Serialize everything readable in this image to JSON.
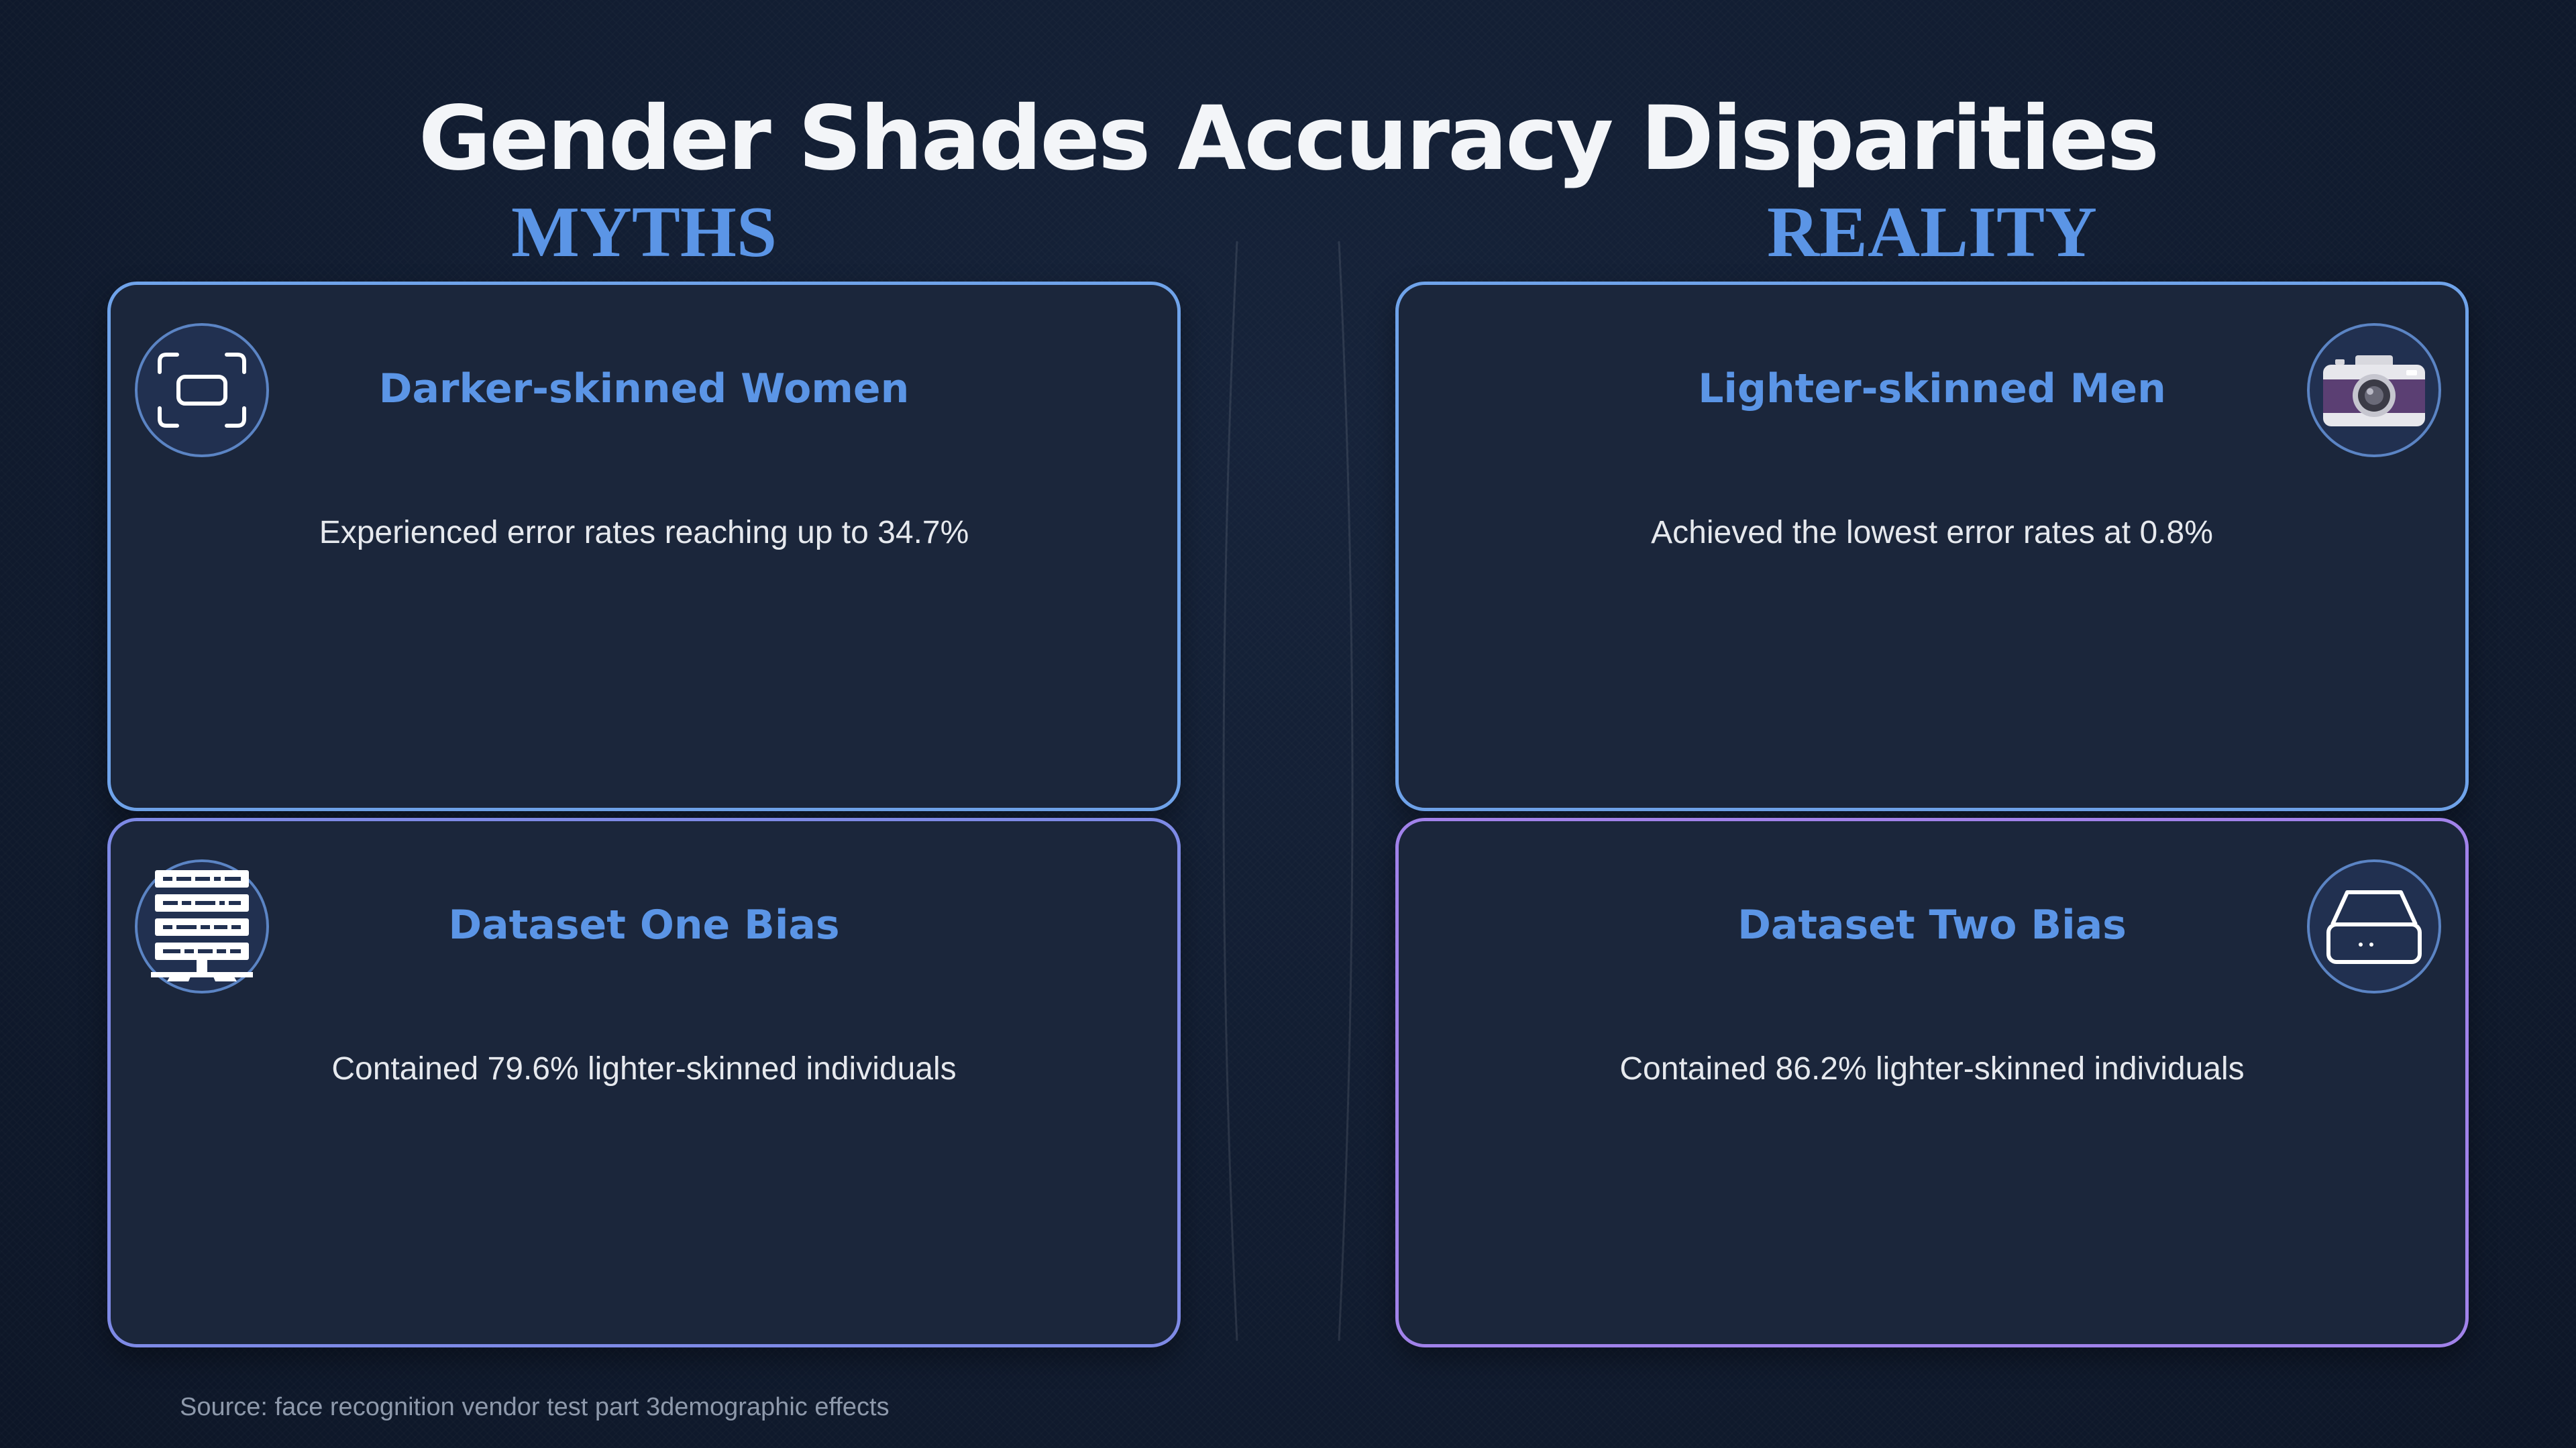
{
  "title": "Gender Shades Accuracy Disparities",
  "columns": {
    "left": "MYTHS",
    "right": "REALITY"
  },
  "cards": [
    {
      "title": "Darker-skinned Women",
      "text": "Experienced error rates reaching up to 34.7%",
      "icon": "scan-frame-icon"
    },
    {
      "title": "Lighter-skinned Men",
      "text": "Achieved the lowest error rates at 0.8%",
      "icon": "camera-icon"
    },
    {
      "title": "Dataset One Bias",
      "text": "Contained 79.6% lighter-skinned individuals",
      "icon": "server-rack-icon"
    },
    {
      "title": "Dataset Two Bias",
      "text": "Contained 86.2% lighter-skinned individuals",
      "icon": "hard-drive-icon"
    }
  ],
  "source": "Source: face recognition vendor test part 3demographic effects",
  "colors": {
    "background": "#111c30",
    "card": "#1b263b",
    "accent": "#5b95e6",
    "border_top": "#6fa3ea",
    "border_bottom_left": "#7e8ae6",
    "border_bottom_right": "#a182ea"
  }
}
